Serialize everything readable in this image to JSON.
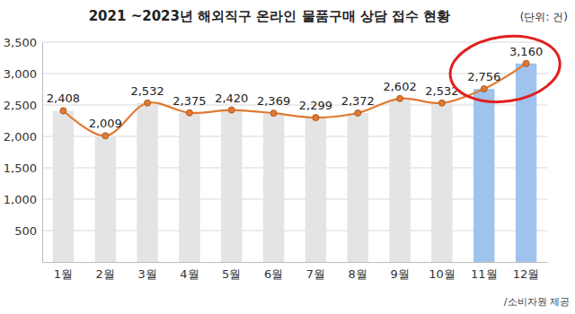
{
  "chart_data": {
    "type": "bar",
    "title": "2021 ~2023년 해외직구 온라인 물품구매 상담 접수 현황",
    "ylabel": "(단위: 건)",
    "annotations": [
      "/소비자원 제공"
    ],
    "categories": [
      "1월",
      "2월",
      "3월",
      "4월",
      "5월",
      "6월",
      "7월",
      "8월",
      "9월",
      "10월",
      "11월",
      "12월"
    ],
    "series": [
      {
        "type": "bar",
        "colors": [
          "#e4e4e4",
          "#e4e4e4",
          "#e4e4e4",
          "#e4e4e4",
          "#e4e4e4",
          "#e4e4e4",
          "#e4e4e4",
          "#e4e4e4",
          "#e4e4e4",
          "#e4e4e4",
          "#9fc3ec",
          "#9fc3ec"
        ],
        "values": [
          2408,
          2009,
          2532,
          2375,
          2420,
          2369,
          2299,
          2372,
          2602,
          2532,
          2756,
          3160
        ]
      },
      {
        "type": "line",
        "color": "#e07a32",
        "marker": "circle",
        "data_labels": true,
        "values": [
          2408,
          2009,
          2532,
          2375,
          2420,
          2369,
          2299,
          2372,
          2602,
          2532,
          2756,
          3160
        ],
        "value_labels": [
          "2,408",
          "2,009",
          "2,532",
          "2,375",
          "2,420",
          "2,369",
          "2,299",
          "2,372",
          "2,602",
          "2,532",
          "2,756",
          "3,160"
        ]
      }
    ],
    "ylim": [
      0,
      3500
    ],
    "yticks": [
      500,
      {
        "value": 1000,
        "label": "1,000"
      },
      {
        "value": 1500,
        "label": "1,500"
      },
      {
        "value": 2000,
        "label": "2,000"
      },
      {
        "value": 2500,
        "label": "2,500"
      },
      {
        "value": 3000,
        "label": "3,000"
      },
      {
        "value": 3500,
        "label": "3,500"
      }
    ],
    "grid": true
  }
}
